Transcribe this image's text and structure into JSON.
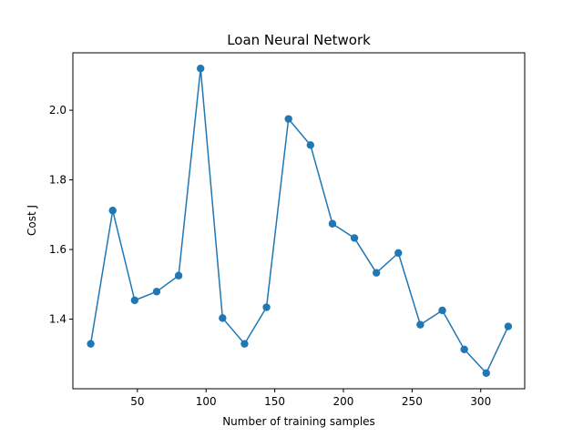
{
  "chart_data": {
    "type": "line",
    "title": "Loan Neural Network",
    "xlabel": "Number of training samples",
    "ylabel": "Cost J",
    "xlim": [
      3,
      332
    ],
    "ylim": [
      1.2,
      2.165
    ],
    "xticks": [
      50,
      100,
      150,
      200,
      250,
      300
    ],
    "yticks": [
      1.4,
      1.6,
      1.8,
      2.0
    ],
    "grid": false,
    "series": [
      {
        "color": "#1f77b4",
        "marker": "circle",
        "x": [
          16,
          32,
          48,
          64,
          80,
          96,
          112,
          128,
          144,
          160,
          176,
          192,
          208,
          224,
          240,
          256,
          272,
          288,
          304,
          320
        ],
        "y": [
          1.329,
          1.712,
          1.454,
          1.479,
          1.525,
          2.12,
          1.403,
          1.329,
          1.434,
          1.975,
          1.9,
          1.674,
          1.633,
          1.533,
          1.59,
          1.384,
          1.425,
          1.313,
          1.245,
          1.379
        ]
      }
    ]
  }
}
